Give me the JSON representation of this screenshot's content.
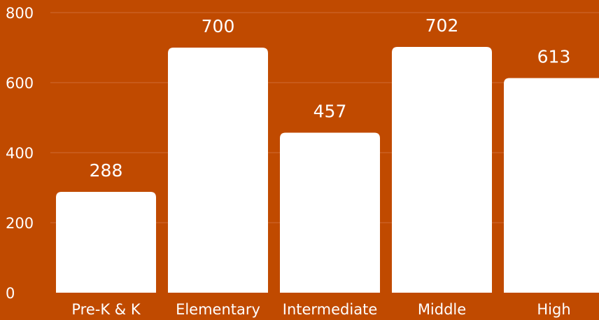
{
  "chart_data": {
    "type": "bar",
    "title": "",
    "xlabel": "",
    "ylabel": "",
    "categories": [
      "Pre-K & K",
      "Elementary",
      "Intermediate",
      "Middle",
      "High"
    ],
    "values": [
      288,
      700,
      457,
      702,
      613
    ],
    "value_labels": [
      "288",
      "700",
      "457",
      "702",
      "613"
    ],
    "ylim": [
      0,
      800
    ],
    "yticks": [
      0,
      200,
      400,
      600,
      800
    ],
    "ytick_labels": [
      "0",
      "200",
      "400",
      "600",
      "800"
    ],
    "grid": true,
    "legend": "none",
    "colors": {
      "background": "#C04A00",
      "bar": "#FFFFFF",
      "gridline": "#D06A33",
      "text": "#FFFFFF"
    }
  }
}
